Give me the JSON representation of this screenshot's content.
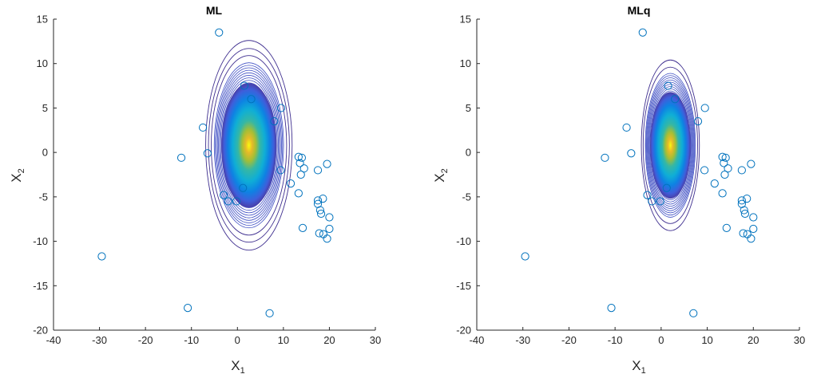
{
  "chart_data": [
    {
      "type": "scatter",
      "title": "ML",
      "xlabel": "X",
      "xlabel_sub": "1",
      "ylabel": "X",
      "ylabel_sub": "2",
      "xlim": [
        -40,
        30
      ],
      "ylim": [
        -20,
        15
      ],
      "xticks": [
        -40,
        -30,
        -20,
        -10,
        0,
        10,
        20,
        30
      ],
      "yticks": [
        -20,
        -15,
        -10,
        -5,
        0,
        5,
        10,
        15
      ],
      "grid": false,
      "marker_color": "#0072BD",
      "points": [
        [
          -4,
          13.5
        ],
        [
          1.5,
          7.5
        ],
        [
          3,
          6
        ],
        [
          -7.5,
          2.8
        ],
        [
          8,
          3.5
        ],
        [
          9.5,
          5
        ],
        [
          -6.5,
          -0.1
        ],
        [
          -12.2,
          -0.6
        ],
        [
          13.3,
          -0.5
        ],
        [
          14,
          -0.6
        ],
        [
          13.6,
          -1.2
        ],
        [
          13.8,
          -2.5
        ],
        [
          14.5,
          -1.8
        ],
        [
          9.4,
          -2
        ],
        [
          17.5,
          -2
        ],
        [
          19.5,
          -1.3
        ],
        [
          11.6,
          -3.5
        ],
        [
          13.3,
          -4.6
        ],
        [
          -3,
          -4.8
        ],
        [
          -2,
          -5.5
        ],
        [
          -0.2,
          -5.5
        ],
        [
          1.2,
          -4
        ],
        [
          17.5,
          -5.4
        ],
        [
          18.6,
          -5.2
        ],
        [
          17.5,
          -5.8
        ],
        [
          18,
          -6.5
        ],
        [
          18.2,
          -6.9
        ],
        [
          14.2,
          -8.5
        ],
        [
          20,
          -7.3
        ],
        [
          17.8,
          -9.1
        ],
        [
          18.7,
          -9.2
        ],
        [
          20,
          -8.6
        ],
        [
          19.5,
          -9.7
        ],
        [
          -29.5,
          -11.7
        ],
        [
          -10.8,
          -17.5
        ],
        [
          7,
          -18.1
        ]
      ],
      "density": {
        "center": [
          2.5,
          0.8
        ],
        "sigma": [
          3,
          3.5
        ],
        "outer_radii": [
          [
            9.4,
            11.8
          ],
          [
            8.8,
            10.9
          ],
          [
            8.2,
            10.1
          ]
        ]
      }
    },
    {
      "type": "scatter",
      "title": "MLq",
      "xlabel": "X",
      "xlabel_sub": "1",
      "ylabel": "X",
      "ylabel_sub": "2",
      "xlim": [
        -40,
        30
      ],
      "ylim": [
        -20,
        15
      ],
      "xticks": [
        -40,
        -30,
        -20,
        -10,
        0,
        10,
        20,
        30
      ],
      "yticks": [
        -20,
        -15,
        -10,
        -5,
        0,
        5,
        10,
        15
      ],
      "grid": false,
      "marker_color": "#0072BD",
      "points": [
        [
          -4,
          13.5
        ],
        [
          1.5,
          7.5
        ],
        [
          3,
          6
        ],
        [
          -7.5,
          2.8
        ],
        [
          8,
          3.5
        ],
        [
          9.5,
          5
        ],
        [
          -6.5,
          -0.1
        ],
        [
          -12.2,
          -0.6
        ],
        [
          13.3,
          -0.5
        ],
        [
          14,
          -0.6
        ],
        [
          13.6,
          -1.2
        ],
        [
          13.8,
          -2.5
        ],
        [
          14.5,
          -1.8
        ],
        [
          9.4,
          -2
        ],
        [
          17.5,
          -2
        ],
        [
          19.5,
          -1.3
        ],
        [
          11.6,
          -3.5
        ],
        [
          13.3,
          -4.6
        ],
        [
          -3,
          -4.8
        ],
        [
          -2,
          -5.5
        ],
        [
          -0.2,
          -5.5
        ],
        [
          1.2,
          -4
        ],
        [
          17.5,
          -5.4
        ],
        [
          18.6,
          -5.2
        ],
        [
          17.5,
          -5.8
        ],
        [
          18,
          -6.5
        ],
        [
          18.2,
          -6.9
        ],
        [
          14.2,
          -8.5
        ],
        [
          20,
          -7.3
        ],
        [
          17.8,
          -9.1
        ],
        [
          18.7,
          -9.2
        ],
        [
          20,
          -8.6
        ],
        [
          19.5,
          -9.7
        ],
        [
          -29.5,
          -11.7
        ],
        [
          -10.8,
          -17.5
        ],
        [
          7,
          -18.1
        ]
      ],
      "density": {
        "center": [
          2,
          0.8
        ],
        "sigma": [
          2.2,
          3
        ],
        "outer_radii": [
          [
            6.3,
            9.6
          ],
          [
            5.9,
            8.8
          ]
        ]
      }
    }
  ]
}
